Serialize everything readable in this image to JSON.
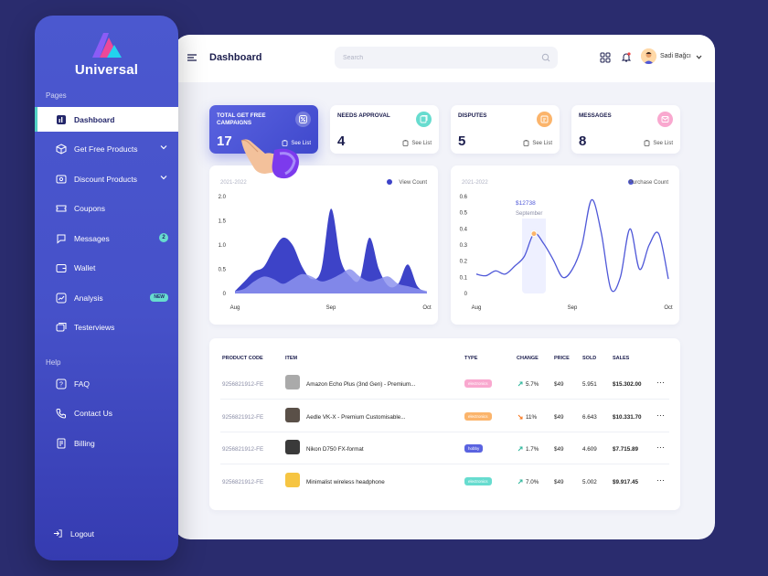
{
  "app": {
    "name": "Universal"
  },
  "sidebar": {
    "pages_label": "Pages",
    "help_label": "Help",
    "items": [
      {
        "label": "Dashboard",
        "icon": "dashboard-icon"
      },
      {
        "label": "Get Free Products",
        "icon": "box-icon"
      },
      {
        "label": "Discount Products",
        "icon": "discount-icon"
      },
      {
        "label": "Coupons",
        "icon": "ticket-icon"
      },
      {
        "label": "Messages",
        "icon": "chat-icon",
        "badge": "2"
      },
      {
        "label": "Wallet",
        "icon": "wallet-icon"
      },
      {
        "label": "Analysis",
        "icon": "analysis-icon",
        "badge": "NEW"
      },
      {
        "label": "Testerviews",
        "icon": "reviews-icon"
      }
    ],
    "help_items": [
      {
        "label": "FAQ",
        "icon": "faq-icon"
      },
      {
        "label": "Contact Us",
        "icon": "phone-icon"
      },
      {
        "label": "Billing",
        "icon": "billing-icon"
      }
    ],
    "logout": "Logout"
  },
  "header": {
    "title": "Dashboard",
    "search_placeholder": "Search",
    "user_name": "Sadi Bağcı"
  },
  "stats": [
    {
      "title": "TOTAL GET FREE CAMPAIGNS",
      "value": "17",
      "link": "See List",
      "icon": "percent-icon",
      "color": "#ffffff"
    },
    {
      "title": "NEEDS APPROVAL",
      "value": "4",
      "link": "See List",
      "icon": "approval-icon",
      "color": "#67dccf"
    },
    {
      "title": "DISPUTES",
      "value": "5",
      "link": "See List",
      "icon": "dispute-icon",
      "color": "#fbb46b"
    },
    {
      "title": "MESSAGES",
      "value": "8",
      "link": "See List",
      "icon": "message-icon",
      "color": "#f9a8cf"
    }
  ],
  "chart_data": [
    {
      "type": "area",
      "subtitle": "2021-2022",
      "legend": "View Count",
      "ylim": [
        0,
        2.0
      ],
      "yticks": [
        "2.0",
        "1.5",
        "1.0",
        "0.5",
        "0"
      ],
      "xticks": [
        "Aug",
        "Sep",
        "Oct"
      ],
      "x": [
        0,
        0.05,
        0.1,
        0.15,
        0.2,
        0.25,
        0.3,
        0.35,
        0.4,
        0.45,
        0.5,
        0.55,
        0.6,
        0.65,
        0.7,
        0.75,
        0.8,
        0.85,
        0.9,
        0.95,
        1.0
      ],
      "series": [
        {
          "name": "View Count",
          "values": [
            0.05,
            0.25,
            0.45,
            0.55,
            0.9,
            1.15,
            1.0,
            0.55,
            0.3,
            0.5,
            1.75,
            0.7,
            0.35,
            0.3,
            1.15,
            0.5,
            0.15,
            0.2,
            0.6,
            0.15,
            0.02
          ]
        },
        {
          "name": "",
          "values": [
            0.05,
            0.1,
            0.25,
            0.35,
            0.3,
            0.2,
            0.3,
            0.4,
            0.35,
            0.25,
            0.3,
            0.4,
            0.5,
            0.35,
            0.25,
            0.3,
            0.35,
            0.2,
            0.15,
            0.1,
            0.05
          ]
        }
      ],
      "colors": [
        "#3d43c8",
        "#8d93ef"
      ]
    },
    {
      "type": "line",
      "subtitle": "2021-2022",
      "legend": "Purchase Count",
      "ylim": [
        0,
        0.6
      ],
      "yticks": [
        "0.6",
        "0.5",
        "0.4",
        "0.3",
        "0.2",
        "0.1",
        "0"
      ],
      "xticks": [
        "Aug",
        "Sep",
        "Oct"
      ],
      "x": [
        0,
        0.05,
        0.1,
        0.15,
        0.2,
        0.25,
        0.3,
        0.35,
        0.4,
        0.45,
        0.5,
        0.55,
        0.6,
        0.65,
        0.7,
        0.75,
        0.8,
        0.85,
        0.9,
        0.95,
        1.0
      ],
      "series": [
        {
          "name": "Purchase Count",
          "values": [
            0.12,
            0.11,
            0.14,
            0.12,
            0.17,
            0.23,
            0.37,
            0.31,
            0.21,
            0.1,
            0.15,
            0.3,
            0.58,
            0.38,
            0.03,
            0.1,
            0.4,
            0.15,
            0.3,
            0.37,
            0.09
          ]
        }
      ],
      "tooltip": {
        "value": "$12738",
        "label": "September",
        "index": 6
      },
      "colors": [
        "#4f58d8"
      ]
    }
  ],
  "table": {
    "headers": [
      "PRODUCT CODE",
      "ITEM",
      "TYPE",
      "CHANGE",
      "PRICE",
      "SOLD",
      "SALES"
    ],
    "rows": [
      {
        "code": "9256821912-FE",
        "item": "Amazon Echo Plus (3nd Gen) - Premium...",
        "type": "electronics",
        "type_color": "#f9a8cf",
        "change": "5.7%",
        "trend": "up",
        "price": "$49",
        "sold": "5.951",
        "sales": "$15.302.00",
        "thumb": "#aaaaaa"
      },
      {
        "code": "9256821912-FE",
        "item": "Aedle VK-X - Premium Customisable...",
        "type": "electronics",
        "type_color": "#fbb46b",
        "change": "11%",
        "trend": "down",
        "price": "$49",
        "sold": "6.643",
        "sales": "$10.331.70",
        "thumb": "#5a5048"
      },
      {
        "code": "9256821912-FE",
        "item": "Nikon D750 FX-format",
        "type": "hobby",
        "type_color": "#5a63e0",
        "change": "1.7%",
        "trend": "up",
        "price": "$49",
        "sold": "4.609",
        "sales": "$7.715.89",
        "thumb": "#3a3a3a"
      },
      {
        "code": "9256821912-FE",
        "item": "Minimalist wireless headphone",
        "type": "electronics",
        "type_color": "#67dccf",
        "change": "7.0%",
        "trend": "up",
        "price": "$49",
        "sold": "5.002",
        "sales": "$9.917.45",
        "thumb": "#f6c542"
      }
    ]
  }
}
